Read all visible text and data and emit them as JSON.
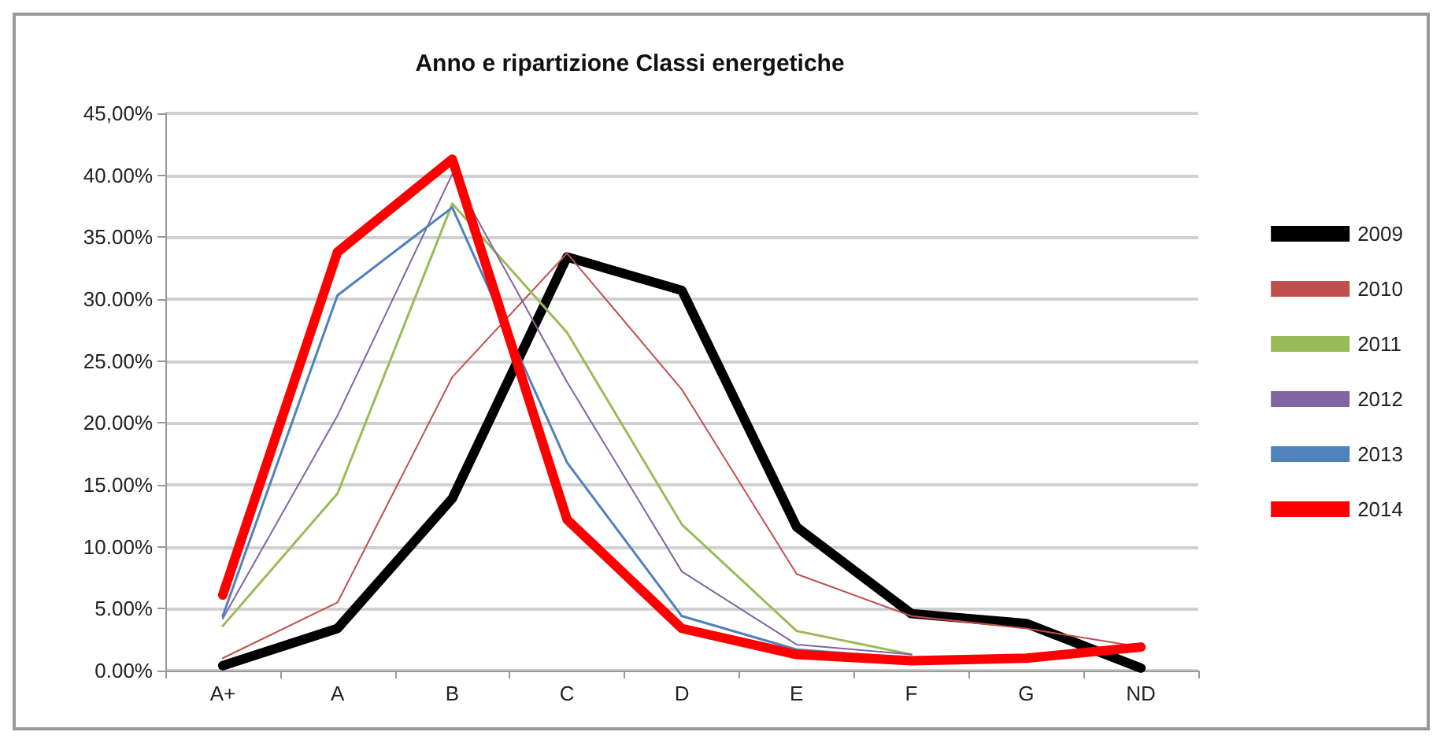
{
  "chart_data": {
    "type": "line",
    "title": "Anno e ripartizione Classi energetiche",
    "categories": [
      "A+",
      "A",
      "B",
      "C",
      "D",
      "E",
      "F",
      "G",
      "ND"
    ],
    "series": [
      {
        "name": "2009",
        "color": "#000000",
        "values": [
          0.4,
          3.4,
          13.9,
          33.4,
          30.7,
          11.6,
          4.6,
          3.8,
          0.2
        ]
      },
      {
        "name": "2010",
        "color": "#c0504d",
        "values": [
          1.0,
          5.5,
          23.7,
          33.7,
          22.7,
          7.8,
          4.4,
          3.4,
          1.9
        ]
      },
      {
        "name": "2011",
        "color": "#9bbb59",
        "values": [
          3.6,
          14.3,
          37.7,
          27.3,
          11.8,
          3.2,
          1.3,
          null,
          null
        ]
      },
      {
        "name": "2012",
        "color": "#8064a2",
        "values": [
          4.2,
          20.6,
          40.1,
          23.3,
          8.0,
          2.1,
          1.3,
          null,
          null
        ]
      },
      {
        "name": "2013",
        "color": "#4f81bd",
        "values": [
          4.4,
          30.3,
          37.4,
          16.8,
          4.4,
          1.7,
          1.0,
          null,
          null
        ]
      },
      {
        "name": "2014",
        "color": "#ff0000",
        "values": [
          6.1,
          33.8,
          41.3,
          12.2,
          3.4,
          1.3,
          0.8,
          1.0,
          1.9
        ]
      }
    ],
    "ylim": [
      0,
      45
    ],
    "yticks": [
      {
        "value": 0,
        "label": "0.00%"
      },
      {
        "value": 5,
        "label": "5.00%"
      },
      {
        "value": 10,
        "label": "10.00%"
      },
      {
        "value": 15,
        "label": "15.00%"
      },
      {
        "value": 20,
        "label": "20.00%"
      },
      {
        "value": 25,
        "label": "25.00%"
      },
      {
        "value": 30,
        "label": "30.00%"
      },
      {
        "value": 35,
        "label": "35.00%"
      },
      {
        "value": 40,
        "label": "40.00%"
      },
      {
        "value": 45,
        "label": "45,00%"
      }
    ],
    "grid": "y",
    "legend": "right",
    "marker": "none",
    "line_style": "solid"
  }
}
